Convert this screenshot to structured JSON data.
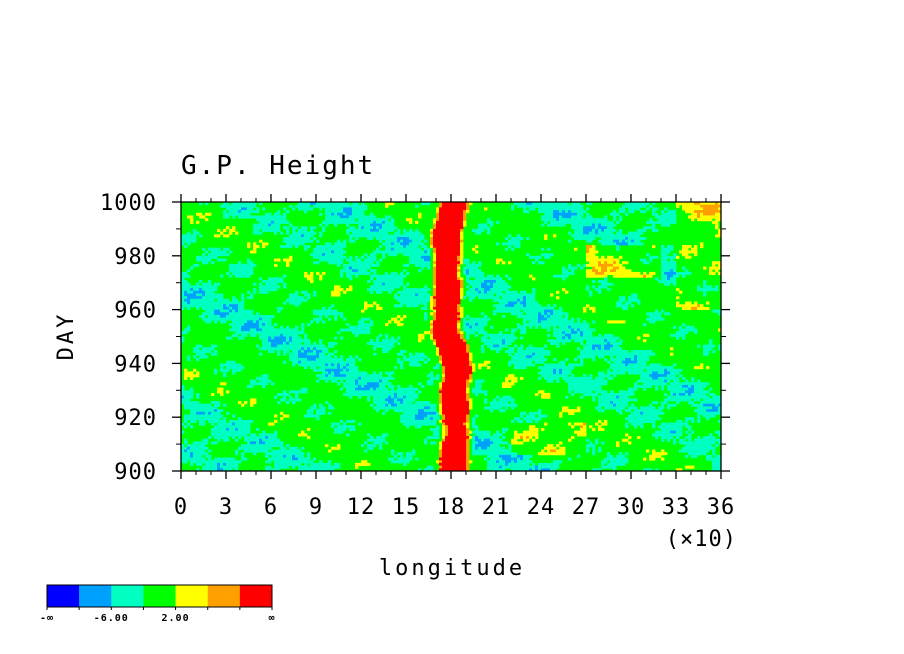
{
  "chart_data": {
    "type": "heatmap",
    "title": "G.P. Height",
    "xlabel": "longitude",
    "ylabel": "DAY",
    "x_scale_label": "(×10)",
    "xlim": [
      0,
      36
    ],
    "ylim": [
      900,
      1000
    ],
    "x_ticks": [
      "0",
      "3",
      "6",
      "9",
      "12",
      "15",
      "18",
      "21",
      "24",
      "27",
      "30",
      "33",
      "36"
    ],
    "y_ticks": [
      "900",
      "920",
      "940",
      "960",
      "980",
      "1000"
    ],
    "colorbar": {
      "colors": [
        "#0000ff",
        "#00a0ff",
        "#00ffc0",
        "#00ff00",
        "#ffff00",
        "#ffa000",
        "#ff0000"
      ],
      "labels": [
        "-∞",
        "-6.00",
        "2.00",
        "∞"
      ]
    },
    "features": [
      {
        "name": "main-ridge",
        "x_center": 18.0,
        "y_range": [
          900,
          1000
        ],
        "level": "high"
      }
    ]
  }
}
